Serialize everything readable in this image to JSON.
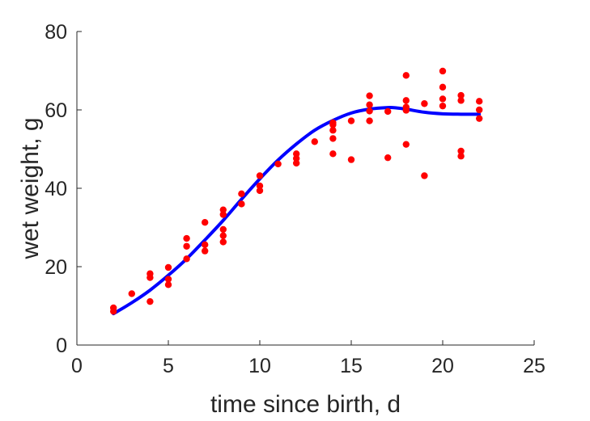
{
  "chart_data": {
    "type": "scatter",
    "xlabel": "time since birth, d",
    "ylabel": "wet weight, g",
    "xlim": [
      0,
      25
    ],
    "ylim": [
      0,
      80
    ],
    "xticks": [
      "0",
      "5",
      "10",
      "15",
      "20",
      "25"
    ],
    "yticks": [
      "0",
      "20",
      "40",
      "60",
      "80"
    ],
    "grid": false,
    "series": [
      {
        "kind": "points",
        "color": "#ff0000",
        "points": [
          [
            2,
            9.5
          ],
          [
            2,
            8.6
          ],
          [
            3,
            13.1
          ],
          [
            4,
            18.2
          ],
          [
            4,
            17.2
          ],
          [
            4,
            11.1
          ],
          [
            5,
            19.8
          ],
          [
            5,
            16.8
          ],
          [
            5,
            15.4
          ],
          [
            6,
            27.2
          ],
          [
            6,
            25.2
          ],
          [
            6,
            22.0
          ],
          [
            7,
            31.3
          ],
          [
            7,
            25.6
          ],
          [
            7,
            24.0
          ],
          [
            8,
            34.5
          ],
          [
            8,
            33.3
          ],
          [
            8,
            29.5
          ],
          [
            8,
            27.9
          ],
          [
            8,
            26.3
          ],
          [
            9,
            38.6
          ],
          [
            9,
            36.0
          ],
          [
            10,
            43.2
          ],
          [
            10,
            40.6
          ],
          [
            10,
            39.4
          ],
          [
            11,
            46.2
          ],
          [
            12,
            48.8
          ],
          [
            12,
            47.6
          ],
          [
            12,
            46.4
          ],
          [
            13,
            51.9
          ],
          [
            14,
            56.7
          ],
          [
            14,
            56.2
          ],
          [
            14,
            54.8
          ],
          [
            14,
            52.7
          ],
          [
            14,
            48.8
          ],
          [
            15,
            57.2
          ],
          [
            15,
            47.3
          ],
          [
            16,
            63.6
          ],
          [
            16,
            61.3
          ],
          [
            16,
            59.7
          ],
          [
            16,
            57.2
          ],
          [
            17,
            59.6
          ],
          [
            17,
            47.8
          ],
          [
            18,
            68.8
          ],
          [
            18,
            62.4
          ],
          [
            18,
            60.7
          ],
          [
            18,
            59.9
          ],
          [
            18,
            51.2
          ],
          [
            19,
            61.6
          ],
          [
            19,
            43.2
          ],
          [
            20,
            69.9
          ],
          [
            20,
            65.8
          ],
          [
            20,
            62.8
          ],
          [
            20,
            61.0
          ],
          [
            21,
            63.7
          ],
          [
            21,
            62.4
          ],
          [
            21,
            49.5
          ],
          [
            21,
            48.2
          ],
          [
            22,
            62.2
          ],
          [
            22,
            60.0
          ],
          [
            22,
            57.8
          ]
        ]
      },
      {
        "kind": "line",
        "color": "#0000ff",
        "x": [
          2,
          3,
          4,
          5,
          6,
          7,
          8,
          9,
          10,
          11,
          12,
          13,
          14,
          15,
          16,
          17,
          17.5,
          18,
          19,
          20,
          21,
          22
        ],
        "y": [
          8.0,
          10.8,
          14.0,
          17.8,
          22.0,
          26.8,
          31.8,
          37.2,
          42.4,
          47.2,
          51.3,
          54.8,
          57.3,
          59.2,
          60.2,
          60.6,
          60.5,
          60.2,
          59.4,
          59.0,
          58.9,
          58.9
        ]
      }
    ]
  }
}
